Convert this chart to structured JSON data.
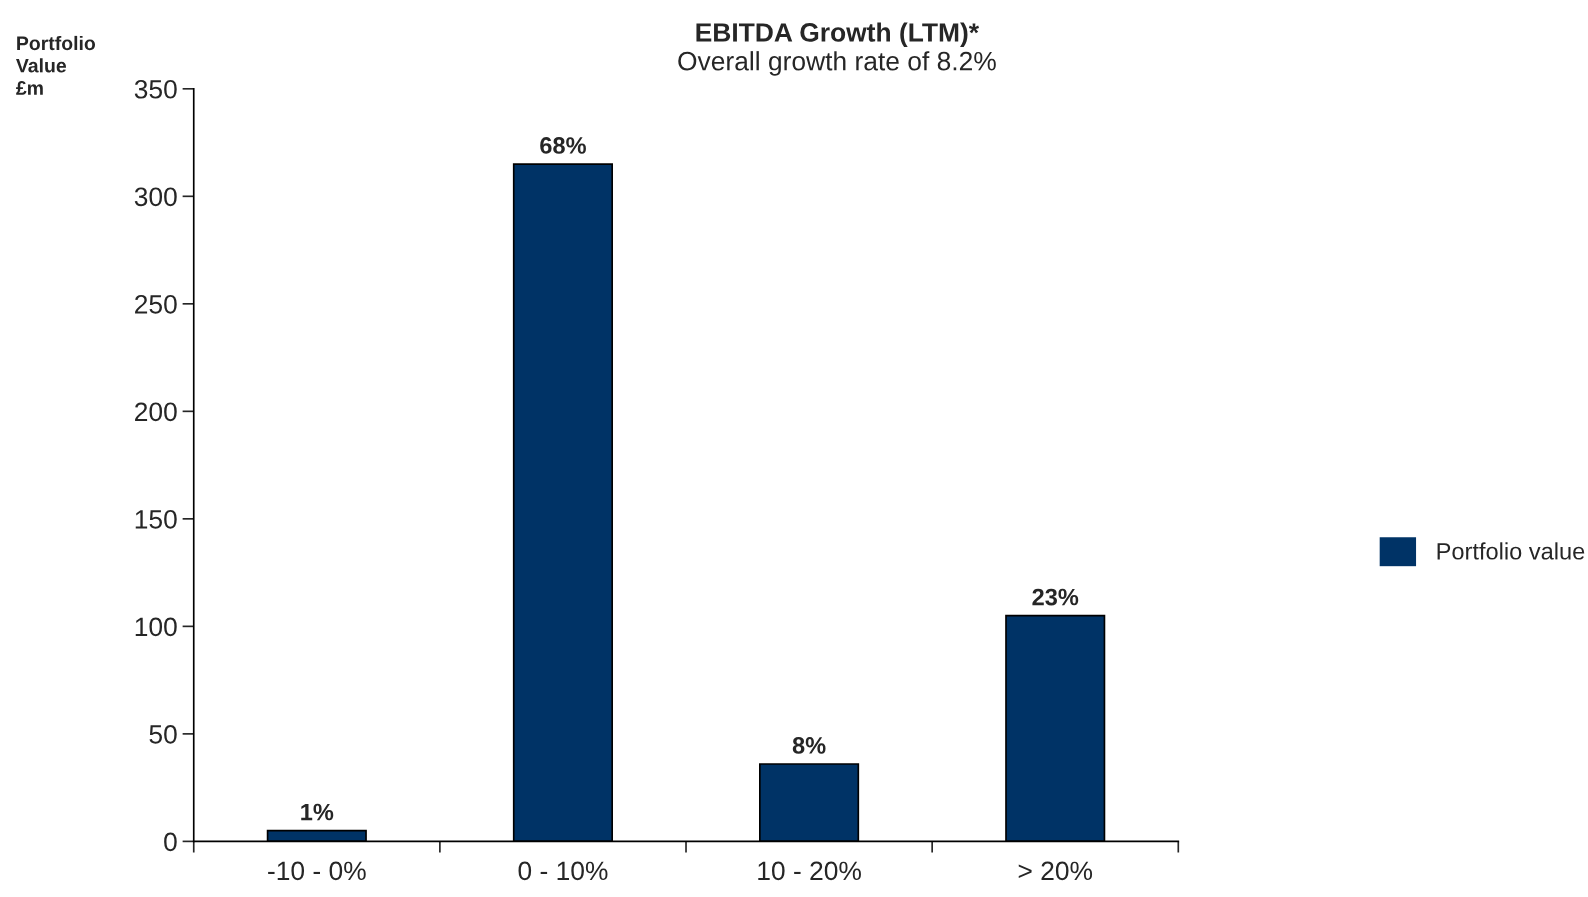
{
  "chart_data": {
    "type": "bar",
    "title": "EBITDA Growth (LTM)*",
    "subtitle": "Overall growth rate of 8.2%",
    "ylabel": "Portfolio\nValue\n£m",
    "categories": [
      "-10 - 0%",
      "0 - 10%",
      "10 - 20%",
      "> 20%"
    ],
    "series": [
      {
        "name": "Portfolio value",
        "color": "#003366",
        "values": [
          5,
          315,
          36,
          105
        ]
      }
    ],
    "annotations": [
      {
        "text": "1%",
        "x": "-10 - 0%",
        "y": 5
      },
      {
        "text": "68%",
        "x": "0 - 10%",
        "y": 315
      },
      {
        "text": "8%",
        "x": "10 - 20%",
        "y": 36
      },
      {
        "text": "23%",
        "x": "> 20%",
        "y": 105
      }
    ],
    "ylim": [
      0,
      350
    ],
    "yticks": [
      0,
      50,
      100,
      150,
      200,
      250,
      300,
      350
    ],
    "grid": false,
    "legend": "right"
  }
}
